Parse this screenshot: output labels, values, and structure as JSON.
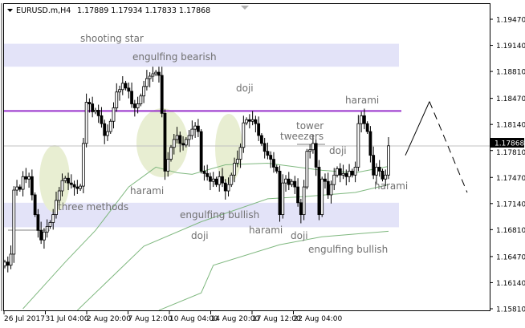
{
  "header": {
    "symbol": "EURUSD.m,H4",
    "ohlc_text": "1.17889 1.17934 1.17833 1.17868"
  },
  "colors": {
    "bull": "#ffffff",
    "bear": "#000000",
    "zone": "#e3e3f8",
    "resistance": "#9933cc",
    "ma": "#7fb87f",
    "highlight": "#e8eed2",
    "bid_line": "#c0c0c0",
    "price_tag": "#000000"
  },
  "chart_data": {
    "type": "candlestick",
    "symbol": "EURUSD.m",
    "timeframe": "H4",
    "current_price": "1.17868",
    "current_price_value": 1.17868,
    "ylim": [
      1.1575,
      1.1985
    ],
    "y_ticks": [
      "1.19470",
      "1.19140",
      "1.18810",
      "1.18470",
      "1.18140",
      "1.17810",
      "1.17470",
      "1.17140",
      "1.16810",
      "1.16470",
      "1.16140",
      "1.15810"
    ],
    "x_ticks": [
      "26 Jul 2017",
      "31 Jul 04:00",
      "2 Aug 20:00",
      "7 Aug 12:00",
      "10 Aug 04:00",
      "14 Aug 20:00",
      "17 Aug 12:00",
      "22 Aug 04:00"
    ],
    "closes": [
      1.164,
      1.1636,
      1.165,
      1.1731,
      1.1735,
      1.1732,
      1.1748,
      1.1745,
      1.1748,
      1.1725,
      1.17,
      1.168,
      1.1668,
      1.1678,
      1.1685,
      1.169,
      1.17,
      1.1718,
      1.173,
      1.1743,
      1.1746,
      1.174,
      1.1738,
      1.1735,
      1.1733,
      1.1736,
      1.179,
      1.1842,
      1.184,
      1.183,
      1.1832,
      1.1825,
      1.1815,
      1.18,
      1.1805,
      1.1818,
      1.1835,
      1.1855,
      1.1858,
      1.1866,
      1.186,
      1.1856,
      1.184,
      1.1835,
      1.184,
      1.185,
      1.1862,
      1.1872,
      1.1875,
      1.1878,
      1.188,
      1.1876,
      1.1828,
      1.1755,
      1.177,
      1.1785,
      1.1795,
      1.18,
      1.179,
      1.1788,
      1.1795,
      1.18,
      1.1808,
      1.1812,
      1.1805,
      1.1755,
      1.1752,
      1.1748,
      1.1742,
      1.1745,
      1.1738,
      1.1748,
      1.174,
      1.173,
      1.1738,
      1.175,
      1.1765,
      1.177,
      1.1785,
      1.1816,
      1.182,
      1.1818,
      1.182,
      1.1815,
      1.18,
      1.179,
      1.178,
      1.1775,
      1.177,
      1.176,
      1.1755,
      1.17,
      1.174,
      1.1745,
      1.1738,
      1.1742,
      1.1735,
      1.1715,
      1.17,
      1.1735,
      1.178,
      1.1782,
      1.179,
      1.176,
      1.17,
      1.1745,
      1.1742,
      1.1725,
      1.1738,
      1.175,
      1.1758,
      1.175,
      1.1752,
      1.1748,
      1.1755,
      1.175,
      1.176,
      1.1815,
      1.1825,
      1.1815,
      1.1805,
      1.1775,
      1.175,
      1.176,
      1.1755,
      1.1745,
      1.175,
      1.1787
    ],
    "moving_averages": [
      [
        [
          6,
          1.1581
        ],
        [
          20,
          1.164
        ],
        [
          30,
          1.168
        ],
        [
          41,
          1.1735
        ],
        [
          50,
          1.176
        ],
        [
          57,
          1.1753
        ],
        [
          62,
          1.1751
        ],
        [
          73,
          1.1763
        ],
        [
          87,
          1.1765
        ],
        [
          105,
          1.1756
        ],
        [
          116,
          1.1753
        ],
        [
          127,
          1.1761
        ]
      ],
      [
        [
          24,
          1.1579
        ],
        [
          46,
          1.166
        ],
        [
          65,
          1.1691
        ],
        [
          87,
          1.172
        ],
        [
          100,
          1.1723
        ],
        [
          116,
          1.1728
        ],
        [
          127,
          1.1738
        ]
      ],
      [
        [
          51,
          1.1579
        ],
        [
          65,
          1.1601
        ],
        [
          69,
          1.1636
        ],
        [
          91,
          1.1662
        ],
        [
          105,
          1.1672
        ],
        [
          127,
          1.1679
        ]
      ]
    ],
    "zones": [
      [
        1.1887,
        1.1916
      ],
      [
        1.1684,
        1.1715
      ]
    ],
    "resistance_level": 1.1831,
    "projection": [
      1.1775,
      1.1843,
      1.1728
    ],
    "annotations": [
      "shooting star",
      "engulfing bearish",
      "doji",
      "harami",
      "tower",
      "tweezers",
      "doji",
      "harami",
      "three methods",
      "engulfing bullish",
      "doji",
      "harami",
      "doji",
      "engulfing bullish",
      "harami"
    ]
  }
}
